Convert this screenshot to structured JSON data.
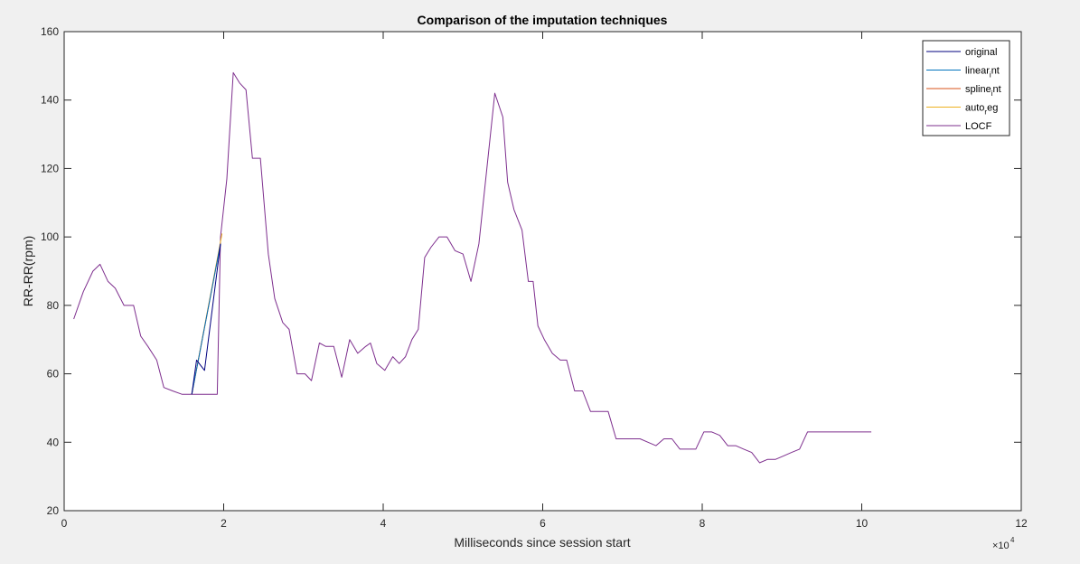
{
  "chart_data": {
    "type": "line",
    "title": "Comparison of the imputation techniques",
    "xlabel": "Milliseconds since session start",
    "ylabel": "RR-RR(rpm)",
    "x_multiplier_label": "×10",
    "x_multiplier_exp": "4",
    "xlim": [
      0,
      12
    ],
    "ylim": [
      20,
      160
    ],
    "xticks": [
      0,
      2,
      4,
      6,
      8,
      10,
      12
    ],
    "yticks": [
      20,
      40,
      60,
      80,
      100,
      120,
      140,
      160
    ],
    "grid": false,
    "legend_position": "top-right",
    "series": [
      {
        "name": "LOCF",
        "color": "#7e2f8e",
        "x": [
          0.12,
          0.24,
          0.36,
          0.45,
          0.55,
          0.64,
          0.75,
          0.87,
          0.96,
          1.05,
          1.16,
          1.25,
          1.36,
          1.48,
          1.6,
          1.72,
          1.84,
          1.88,
          1.92,
          1.96,
          2.04,
          2.12,
          2.2,
          2.28,
          2.36,
          2.46,
          2.56,
          2.64,
          2.74,
          2.82,
          2.92,
          3.02,
          3.1,
          3.2,
          3.28,
          3.38,
          3.48,
          3.58,
          3.68,
          3.78,
          3.84,
          3.92,
          4.02,
          4.12,
          4.2,
          4.28,
          4.36,
          4.44,
          4.52,
          4.6,
          4.7,
          4.8,
          4.9,
          5.0,
          5.1,
          5.2,
          5.3,
          5.4,
          5.5,
          5.56,
          5.64,
          5.74,
          5.82,
          5.88,
          5.94,
          6.02,
          6.12,
          6.22,
          6.3,
          6.4,
          6.5,
          6.6,
          6.7,
          6.82,
          6.92,
          7.02,
          7.12,
          7.22,
          7.32,
          7.42,
          7.52,
          7.62,
          7.72,
          7.82,
          7.92,
          8.02,
          8.12,
          8.22,
          8.32,
          8.42,
          8.52,
          8.62,
          8.72,
          8.82,
          8.92,
          9.02,
          9.12,
          9.22,
          9.32,
          9.42,
          9.52,
          9.62,
          9.72,
          9.82,
          9.92,
          10.02,
          10.12
        ],
        "y": [
          76,
          84,
          90,
          92,
          87,
          85,
          80,
          80,
          71,
          68,
          64,
          56,
          55,
          54,
          54,
          54,
          54,
          54,
          54,
          100,
          117,
          148,
          145,
          143,
          123,
          123,
          95,
          82,
          75,
          73,
          60,
          60,
          58,
          69,
          68,
          68,
          59,
          70,
          66,
          68,
          69,
          63,
          61,
          65,
          63,
          65,
          70,
          73,
          94,
          97,
          100,
          100,
          96,
          95,
          87,
          98,
          120,
          142,
          135,
          116,
          108,
          102,
          87,
          87,
          74,
          70,
          66,
          64,
          64,
          55,
          55,
          49,
          49,
          49,
          41,
          41,
          41,
          41,
          40,
          39,
          41,
          41,
          38,
          38,
          38,
          43,
          43,
          42,
          39,
          39,
          38,
          37,
          34,
          35,
          35,
          36,
          37,
          38,
          43,
          43,
          43,
          43,
          43,
          43,
          43,
          43,
          43
        ]
      },
      {
        "name": "auto_reg",
        "color": "#edb120",
        "x": [
          1.6,
          1.98
        ],
        "y": [
          54,
          101
        ]
      },
      {
        "name": "spline_int",
        "color": "#d95319",
        "x": [
          1.6,
          1.96
        ],
        "y": [
          54,
          98
        ]
      },
      {
        "name": "linear_int",
        "color": "#0072bd",
        "x": [
          1.6,
          1.96
        ],
        "y": [
          54,
          98
        ]
      },
      {
        "name": "original",
        "color": "#00007f",
        "x": [
          1.6,
          1.66,
          1.76,
          1.96
        ],
        "y": [
          54,
          64,
          61,
          98
        ]
      }
    ],
    "legend": [
      {
        "color": "#00007f",
        "main": "original",
        "sub": "",
        "tail": ""
      },
      {
        "color": "#0072bd",
        "main": "linear",
        "sub": "i",
        "tail": "nt"
      },
      {
        "color": "#d95319",
        "main": "spline",
        "sub": "i",
        "tail": "nt"
      },
      {
        "color": "#edb120",
        "main": "auto",
        "sub": "r",
        "tail": "eg"
      },
      {
        "color": "#7e2f8e",
        "main": "LOCF",
        "sub": "",
        "tail": ""
      }
    ]
  }
}
